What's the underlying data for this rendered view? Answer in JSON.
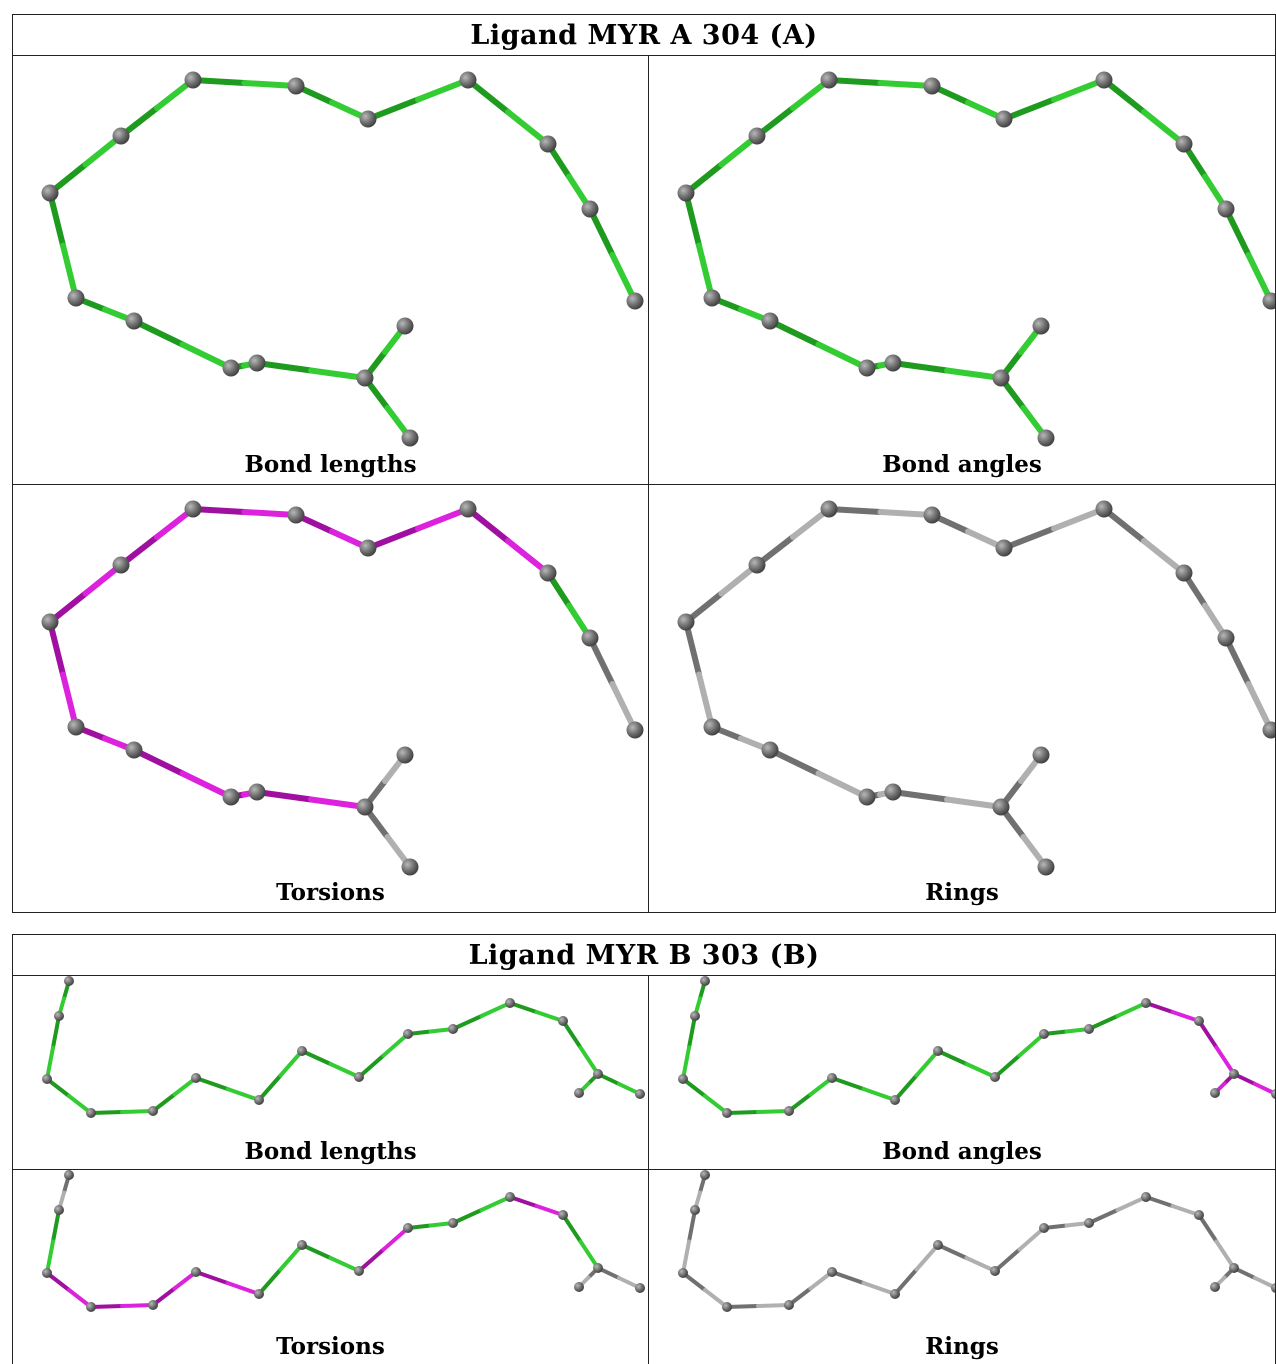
{
  "figure_a": {
    "title": "Ligand MYR A 304 (A)",
    "panels": [
      {
        "caption": "Bond lengths",
        "scheme": "length"
      },
      {
        "caption": "Bond angles",
        "scheme": "angle"
      },
      {
        "caption": "Torsions",
        "scheme": "torsion"
      },
      {
        "caption": "Rings",
        "scheme": "ring"
      }
    ]
  },
  "figure_b": {
    "title": "Ligand MYR B 303 (B)",
    "panels": [
      {
        "caption": "Bond lengths",
        "scheme": "length"
      },
      {
        "caption": "Bond angles",
        "scheme": "angle"
      },
      {
        "caption": "Torsions",
        "scheme": "torsion"
      },
      {
        "caption": "Rings",
        "scheme": "ring"
      }
    ]
  },
  "colors": {
    "good": "#33cc33",
    "outlier": "#dd22dd",
    "neutral": "#b0b0b0",
    "atom": "#6e6e6e",
    "border": "#222222"
  }
}
